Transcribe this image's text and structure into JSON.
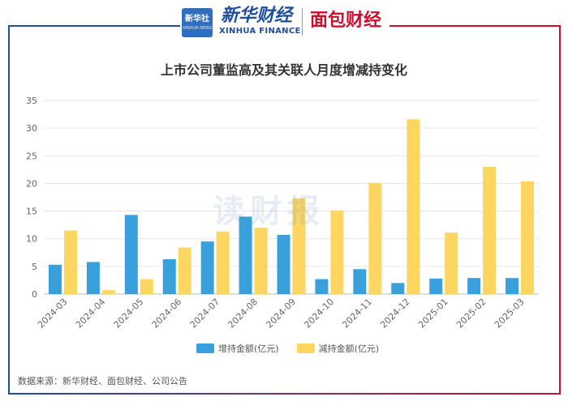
{
  "header": {
    "xinhua_box_title": "新华社",
    "xinhua_box_sub": "XINHUA NEWS",
    "xinhua_brand": "新华财经",
    "xinhua_sub": "XINHUA FINANCE",
    "mianbao_brand": "面包财经"
  },
  "watermark": "读财报",
  "source": "数据来源：新华财经、面包财经、公司公告",
  "colors": {
    "increase": "#3aa0db",
    "decrease": "#fdd661",
    "frame_blue": "#1f4e9c",
    "frame_red": "#c8102e"
  },
  "chart_data": {
    "type": "bar",
    "title": "上市公司董监高及其关联人月度增减持变化",
    "categories": [
      "2024-03",
      "2024-04",
      "2024-05",
      "2024-06",
      "2024-07",
      "2024-08",
      "2024-09",
      "2024-10",
      "2024-11",
      "2024-12",
      "2025-01",
      "2025-02",
      "2025-03"
    ],
    "series": [
      {
        "name": "增持金额(亿元)",
        "color": "#3aa0db",
        "values": [
          5.3,
          5.8,
          14.3,
          6.3,
          9.5,
          14.0,
          10.7,
          2.7,
          4.5,
          2.0,
          2.8,
          2.9,
          2.9
        ]
      },
      {
        "name": "减持金额(亿元)",
        "color": "#fdd661",
        "values": [
          11.5,
          0.7,
          2.7,
          8.4,
          11.3,
          12.0,
          17.3,
          15.1,
          20.1,
          31.6,
          11.1,
          23.0,
          20.4
        ]
      }
    ],
    "ylim": [
      0,
      35
    ],
    "yticks": [
      0,
      5,
      10,
      15,
      20,
      25,
      30,
      35
    ],
    "grid": true,
    "legend_position": "bottom"
  }
}
